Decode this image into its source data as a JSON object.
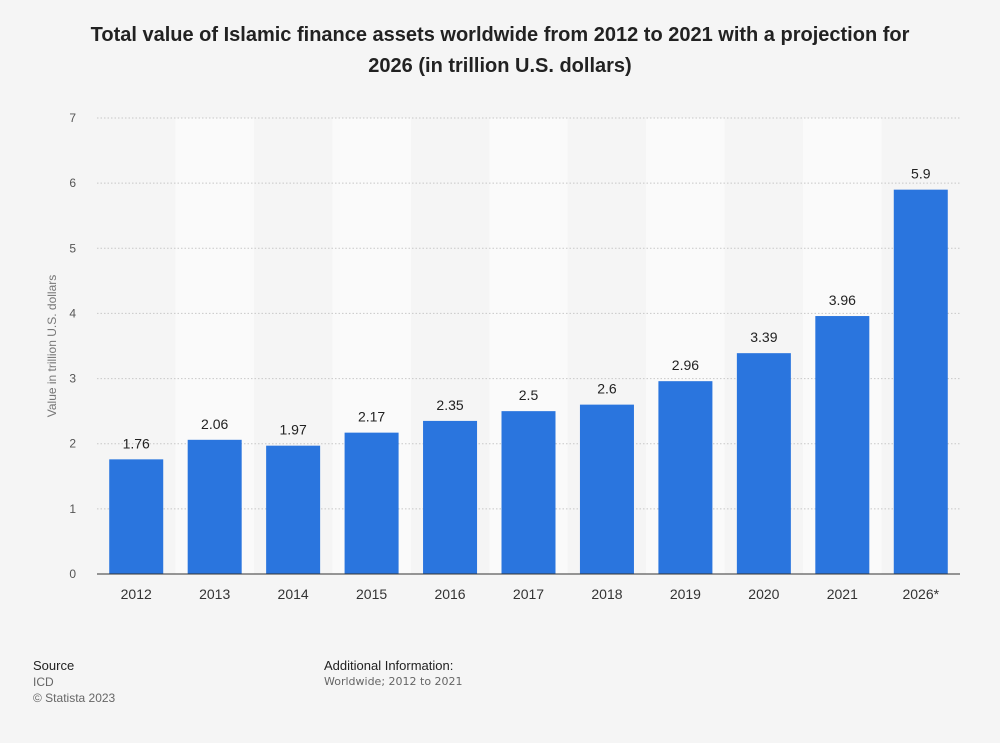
{
  "chart_data": {
    "type": "bar",
    "title": "Total value of Islamic finance assets worldwide from 2012 to 2021 with a projection for 2026 (in trillion U.S. dollars)",
    "title_lines": [
      "Total value of Islamic finance assets worldwide from 2012 to 2021 with a projection for",
      "2026 (in trillion U.S. dollars)"
    ],
    "xlabel": "",
    "ylabel": "Value in trillion U.S. dollars",
    "categories": [
      "2012",
      "2013",
      "2014",
      "2015",
      "2016",
      "2017",
      "2018",
      "2019",
      "2020",
      "2021",
      "2026*"
    ],
    "values": [
      1.76,
      2.06,
      1.97,
      2.17,
      2.35,
      2.5,
      2.6,
      2.96,
      3.39,
      3.96,
      5.9
    ],
    "data_labels": [
      "1.76",
      "2.06",
      "1.97",
      "2.17",
      "2.35",
      "2.5",
      "2.6",
      "2.96",
      "3.39",
      "3.96",
      "5.9"
    ],
    "ylim": [
      0,
      7
    ],
    "yticks": [
      0,
      1,
      2,
      3,
      4,
      5,
      6,
      7
    ],
    "grid": true,
    "bar_color": "#2a75de",
    "alt_band_color": "#fafafa"
  },
  "footer": {
    "source_heading": "Source",
    "source_name": "ICD",
    "copyright": "© Statista 2023",
    "info_heading": "Additional Information:",
    "info_text": "Worldwide; 2012 to 2021"
  }
}
